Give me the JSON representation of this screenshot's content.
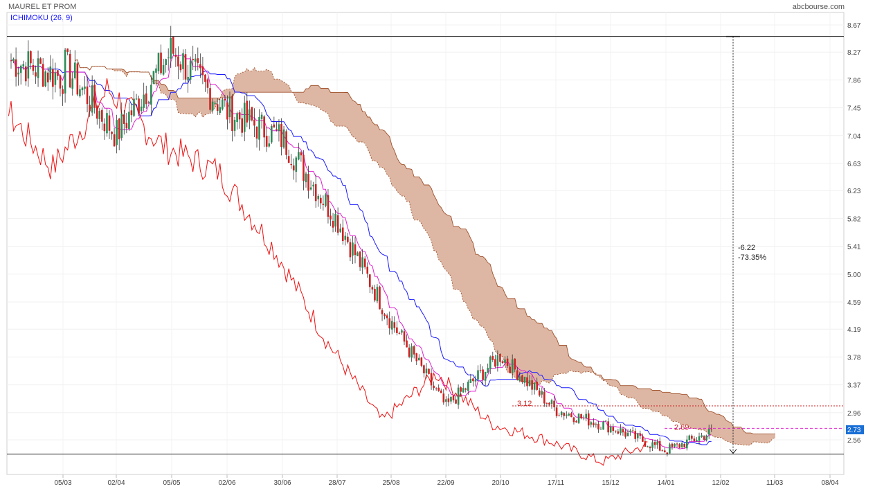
{
  "header": {
    "title": "MAUREL ET PROM",
    "source": "abcbourse.com",
    "indicator": "ICHIMOKU (26, 9)"
  },
  "colors": {
    "up": "#2e8b57",
    "down": "#cc2222",
    "tenkan": "#e020d0",
    "kijun": "#1a1aff",
    "chikou": "#ee1111",
    "cloud": "#ddb7a4",
    "cloud_edge": "#a0522d",
    "badge": "#1a6fd6"
  },
  "chart_data": {
    "type": "candlestick",
    "y_ticks": [
      "8.67",
      "8.27",
      "7.86",
      "7.45",
      "7.04",
      "6.63",
      "6.23",
      "5.82",
      "5.41",
      "5.00",
      "4.59",
      "4.19",
      "3.78",
      "3.37",
      "2.96",
      "2.56"
    ],
    "ylim": [
      2.26,
      8.8
    ],
    "x_ticks": [
      "05/03",
      "02/04",
      "05/05",
      "02/06",
      "30/06",
      "28/07",
      "25/08",
      "22/09",
      "20/10",
      "17/11",
      "15/12",
      "14/01",
      "12/02",
      "11/03",
      "08/04"
    ],
    "price_key_points": [
      {
        "x": "05/03",
        "y": 8.1
      },
      {
        "x": "02/04",
        "y": 7.05
      },
      {
        "x": "05/05",
        "y": 8.3
      },
      {
        "x": "02/06",
        "y": 7.4
      },
      {
        "x": "30/06",
        "y": 7.0
      },
      {
        "x": "28/07",
        "y": 5.8
      },
      {
        "x": "25/08",
        "y": 4.3
      },
      {
        "x": "22/09",
        "y": 3.05
      },
      {
        "x": "20/10",
        "y": 3.8
      },
      {
        "x": "17/11",
        "y": 3.0
      },
      {
        "x": "15/12",
        "y": 2.75
      },
      {
        "x": "14/01",
        "y": 2.4
      },
      {
        "x": "12/02",
        "y": 2.73
      }
    ],
    "last_price": "2.73",
    "measure": {
      "change": "-6.22",
      "percent": "-73.35%"
    },
    "annotations": [
      {
        "text": "3.12",
        "y": 3.12
      },
      {
        "text": "2.69",
        "y": 2.69
      }
    ],
    "reference_lines": {
      "upper": 8.5,
      "lower": 2.35,
      "dotted": 3.06,
      "dashed": 2.73
    }
  }
}
